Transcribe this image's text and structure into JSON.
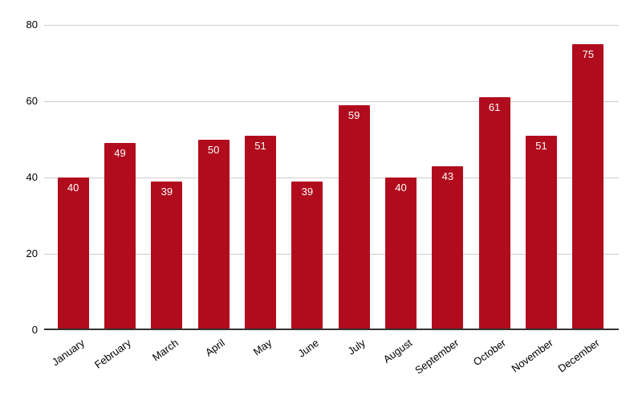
{
  "chart_data": {
    "type": "bar",
    "categories": [
      "January",
      "February",
      "March",
      "April",
      "May",
      "June",
      "July",
      "August",
      "September",
      "October",
      "November",
      "December"
    ],
    "values": [
      40,
      49,
      39,
      50,
      51,
      39,
      59,
      40,
      43,
      61,
      51,
      75
    ],
    "title": "",
    "xlabel": "",
    "ylabel": "",
    "ylim": [
      0,
      80
    ],
    "yticks": [
      0,
      20,
      40,
      60,
      80
    ],
    "grid": true,
    "legend": "none",
    "data_labels": "inside-top",
    "colors": {
      "bar": "#B10C1D",
      "value_label": "#ffffff",
      "gridline": "#cccccc",
      "axis_line": "#333333",
      "tick_label": "#000000",
      "background": "#ffffff"
    }
  }
}
